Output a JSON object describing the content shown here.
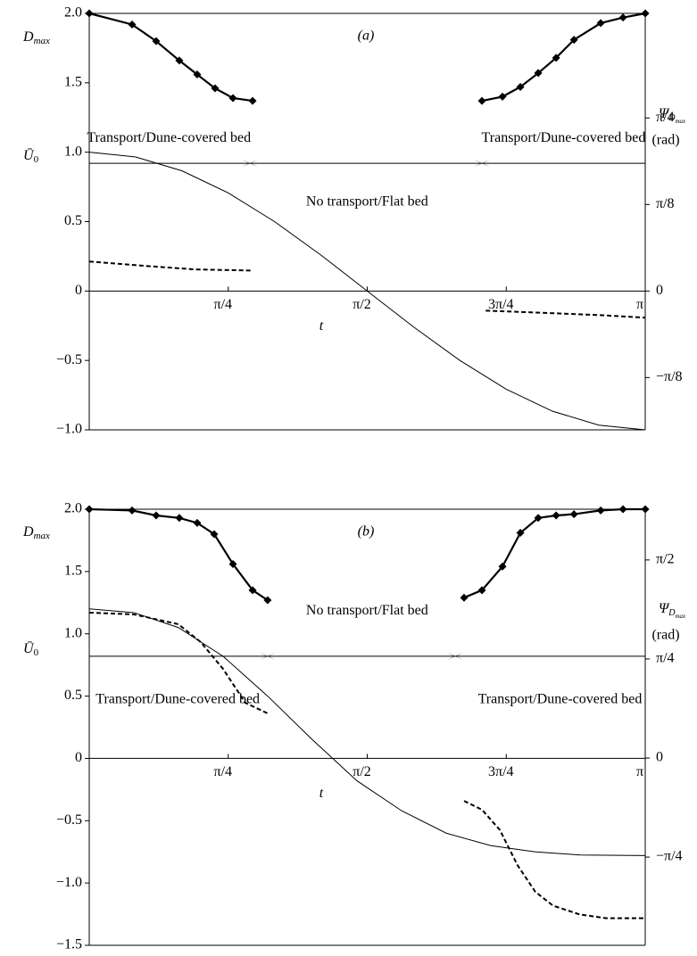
{
  "chart_data": [
    {
      "type": "line",
      "panel_label": "(a)",
      "x_label": "t",
      "y_label_top": {
        "main": "D",
        "sub": "max"
      },
      "y_label_mid": {
        "main": "Ū",
        "sub": "0"
      },
      "y2_label": {
        "main": "Ψ",
        "sub": "D",
        "subsub": "max",
        "unit": "(rad)"
      },
      "xlim": [
        0,
        3.1416
      ],
      "xticks": [
        {
          "value": 0.7854,
          "label": "π/4"
        },
        {
          "value": 1.5708,
          "label": "π/2"
        },
        {
          "value": 2.3562,
          "label": "3π/4"
        },
        {
          "value": 3.1416,
          "label": "π"
        }
      ],
      "ylim": [
        -1,
        2
      ],
      "yticks": [
        {
          "value": 2,
          "label": "2.0"
        },
        {
          "value": 1.5,
          "label": "1.5"
        },
        {
          "value": 1,
          "label": "1.0"
        },
        {
          "value": 0.5,
          "label": "0.5"
        },
        0,
        {
          "value": -0.5,
          "label": "−0.5"
        },
        {
          "value": -1,
          "label": "−1.0"
        }
      ],
      "y2lim": [
        -0.63,
        1.26
      ],
      "y2ticks": [
        {
          "value": 0.7854,
          "label": "π/4"
        },
        {
          "value": 0.3927,
          "label": "π/8"
        },
        0,
        {
          "value": -0.3927,
          "label": "−π/8"
        }
      ],
      "threshold": {
        "y": 0.92,
        "x": [
          0.908,
          2.219
        ]
      },
      "regions": [
        {
          "text": "Transport/Dune-covered bed",
          "x": 0.45,
          "y": 1.1
        },
        {
          "text": "Transport/Dune-covered bed",
          "x": 2.68,
          "y": 1.1
        },
        {
          "text": "No transport/Flat bed",
          "x": 1.57,
          "y": 0.64
        }
      ],
      "series": [
        {
          "style": "marker",
          "x": [
            0,
            0.242,
            0.378,
            0.509,
            0.61,
            0.711,
            0.812,
            0.923
          ],
          "values": [
            2.0,
            1.92,
            1.8,
            1.66,
            1.56,
            1.46,
            1.39,
            1.37
          ]
        },
        {
          "style": "marker",
          "x": [
            2.219,
            2.335,
            2.436,
            2.537,
            2.638,
            2.739,
            2.89,
            3.016,
            3.142
          ],
          "values": [
            1.37,
            1.4,
            1.47,
            1.57,
            1.68,
            1.81,
            1.93,
            1.97,
            2.0
          ]
        },
        {
          "style": "solid",
          "x": [
            0,
            0.2618,
            0.5236,
            0.7854,
            1.0472,
            1.309,
            1.5708,
            1.8326,
            2.0944,
            2.3562,
            2.618,
            2.8798,
            3.1416
          ],
          "values": [
            1,
            0.966,
            0.866,
            0.707,
            0.5,
            0.259,
            0,
            -0.259,
            -0.5,
            -0.707,
            -0.866,
            -0.966,
            -1
          ]
        },
        {
          "style": "dashed",
          "axis": "y2",
          "x": [
            0,
            0.3,
            0.6,
            0.92
          ],
          "values": [
            0.134,
            0.115,
            0.098,
            0.093
          ]
        },
        {
          "style": "dashed",
          "axis": "y2",
          "x": [
            2.24,
            2.6,
            2.9,
            3.142
          ],
          "values": [
            -0.089,
            -0.1,
            -0.11,
            -0.121
          ]
        }
      ]
    },
    {
      "type": "line",
      "panel_label": "(b)",
      "x_label": "t",
      "y_label_top": {
        "main": "D",
        "sub": "max"
      },
      "y_label_mid": {
        "main": "Ū",
        "sub": "0"
      },
      "y2_label": {
        "main": "Ψ",
        "sub": "D",
        "subsub": "max",
        "unit": "(rad)"
      },
      "xlim": [
        0,
        3.1416
      ],
      "xticks": [
        {
          "value": 0.7854,
          "label": "π/4"
        },
        {
          "value": 1.5708,
          "label": "π/2"
        },
        {
          "value": 2.3562,
          "label": "3π/4"
        },
        {
          "value": 3.1416,
          "label": "π"
        }
      ],
      "ylim": [
        -1.5,
        2
      ],
      "yticks": [
        {
          "value": 2,
          "label": "2.0"
        },
        {
          "value": 1.5,
          "label": "1.5"
        },
        {
          "value": 1,
          "label": "1.0"
        },
        {
          "value": 0.5,
          "label": "0.5"
        },
        0,
        {
          "value": -0.5,
          "label": "−0.5"
        },
        {
          "value": -1,
          "label": "−1.0"
        },
        {
          "value": -1.5,
          "label": "−1.5"
        }
      ],
      "y2lim": [
        -1.485,
        1.973
      ],
      "y2ticks": [
        {
          "value": 1.5708,
          "label": "π/2"
        },
        {
          "value": 0.7854,
          "label": "π/4"
        },
        0,
        {
          "value": -0.7854,
          "label": "−π/4"
        }
      ],
      "threshold": {
        "y": 0.82,
        "x": [
          1.008,
          2.068
        ]
      },
      "regions": [
        {
          "text": "No transport/Flat bed",
          "x": 1.57,
          "y": 1.18
        },
        {
          "text": "Transport/Dune-covered bed",
          "x": 0.5,
          "y": 0.47
        },
        {
          "text": "Transport/Dune-covered bed",
          "x": 2.66,
          "y": 0.47
        }
      ],
      "series": [
        {
          "style": "marker",
          "x": [
            0,
            0.242,
            0.378,
            0.509,
            0.61,
            0.706,
            0.812,
            0.923,
            1.008
          ],
          "values": [
            2.0,
            1.99,
            1.95,
            1.93,
            1.89,
            1.8,
            1.56,
            1.35,
            1.27
          ]
        },
        {
          "style": "marker",
          "x": [
            2.118,
            2.219,
            2.335,
            2.436,
            2.537,
            2.638,
            2.739,
            2.89,
            3.016,
            3.142
          ],
          "values": [
            1.29,
            1.35,
            1.54,
            1.81,
            1.93,
            1.95,
            1.96,
            1.99,
            2.0,
            2.0
          ]
        },
        {
          "style": "solid",
          "x": [
            0,
            0.252,
            0.504,
            0.756,
            1.008,
            1.261,
            1.513,
            1.765,
            2.017,
            2.269,
            2.522,
            2.774,
            3.142
          ],
          "values": [
            1.2,
            1.17,
            1.05,
            0.82,
            0.5,
            0.15,
            -0.18,
            -0.42,
            -0.6,
            -0.7,
            -0.75,
            -0.775,
            -0.78
          ]
        },
        {
          "style": "dashed",
          "axis": "y2",
          "x": [
            0,
            0.252,
            0.504,
            0.63,
            0.756,
            0.882,
            1.008
          ],
          "values": [
            1.153,
            1.139,
            1.061,
            0.919,
            0.707,
            0.438,
            0.354
          ]
        },
        {
          "style": "dashed",
          "axis": "y2",
          "x": [
            2.118,
            2.219,
            2.32,
            2.42,
            2.52,
            2.62,
            2.77,
            2.92,
            3.142
          ],
          "values": [
            -0.34,
            -0.41,
            -0.57,
            -0.85,
            -1.06,
            -1.17,
            -1.24,
            -1.27,
            -1.27
          ]
        }
      ]
    }
  ]
}
